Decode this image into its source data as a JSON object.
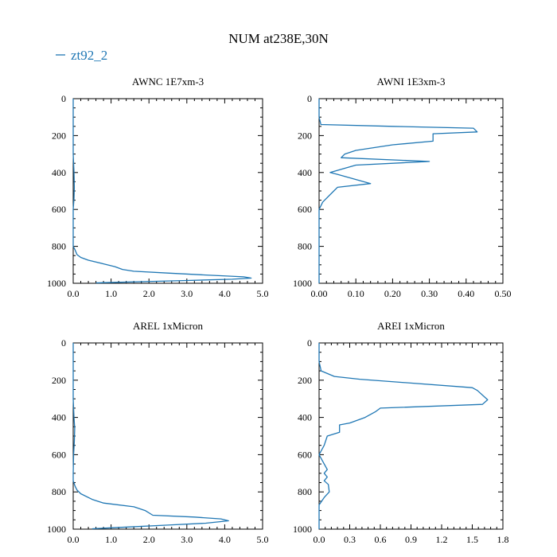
{
  "figure_title": "NUM at238E,30N",
  "legend": {
    "label": "zt92_2",
    "color": "#1f77b4"
  },
  "colors": {
    "series": "#1f77b4",
    "axis": "#000000"
  },
  "chart_data": [
    {
      "type": "line",
      "title": "AWNC  1E7xm-3",
      "xlabel": "",
      "ylabel": "",
      "xlim": [
        0,
        5
      ],
      "ylim": [
        0,
        1000
      ],
      "y_inverted": true,
      "x_ticks": [
        0,
        1,
        2,
        3,
        4,
        5
      ],
      "x_tick_labels": [
        "0.0",
        "1.0",
        "2.0",
        "3.0",
        "4.0",
        "5.0"
      ],
      "y_ticks": [
        0,
        200,
        400,
        600,
        800,
        1000
      ],
      "y_tick_labels": [
        "0",
        "200",
        "400",
        "600",
        "800",
        "1000"
      ],
      "series": [
        {
          "name": "zt92_2",
          "x": [
            0,
            0,
            0.02,
            0.03,
            0.02,
            0,
            0,
            0.05,
            0.1,
            0.2,
            0.4,
            0.8,
            1.1,
            1.3,
            1.6,
            2.5,
            3.5,
            4.5,
            4.7,
            4.2,
            3.0,
            1.7,
            0.6
          ],
          "y": [
            0,
            300,
            400,
            480,
            540,
            600,
            800,
            820,
            845,
            860,
            875,
            895,
            910,
            925,
            935,
            945,
            955,
            965,
            972,
            978,
            985,
            992,
            998
          ]
        }
      ]
    },
    {
      "type": "line",
      "title": "AWNI  1E3xm-3",
      "xlabel": "",
      "ylabel": "",
      "xlim": [
        0,
        0.5
      ],
      "ylim": [
        0,
        1000
      ],
      "y_inverted": true,
      "x_ticks": [
        0,
        0.1,
        0.2,
        0.3,
        0.4,
        0.5
      ],
      "x_tick_labels": [
        "0.00",
        "0.10",
        "0.20",
        "0.30",
        "0.40",
        "0.50"
      ],
      "y_ticks": [
        0,
        200,
        400,
        600,
        800,
        1000
      ],
      "y_tick_labels": [
        "0",
        "200",
        "400",
        "600",
        "800",
        "1000"
      ],
      "series": [
        {
          "name": "zt92_2",
          "x": [
            0,
            0,
            0.005,
            0.2,
            0.42,
            0.43,
            0.31,
            0.31,
            0.2,
            0.1,
            0.07,
            0.06,
            0.3,
            0.1,
            0.03,
            0.05,
            0.14,
            0.05,
            0.04,
            0.01,
            0,
            0,
            0
          ],
          "y": [
            0,
            100,
            140,
            150,
            160,
            180,
            190,
            230,
            250,
            280,
            300,
            320,
            340,
            360,
            400,
            410,
            460,
            480,
            500,
            560,
            600,
            800,
            1000
          ]
        }
      ]
    },
    {
      "type": "line",
      "title": "AREL  1xMicron",
      "xlabel": "",
      "ylabel": "",
      "xlim": [
        0,
        5
      ],
      "ylim": [
        0,
        1000
      ],
      "y_inverted": true,
      "x_ticks": [
        0,
        1,
        2,
        3,
        4,
        5
      ],
      "x_tick_labels": [
        "0.0",
        "1.0",
        "2.0",
        "3.0",
        "4.0",
        "5.0"
      ],
      "y_ticks": [
        0,
        200,
        400,
        600,
        800,
        1000
      ],
      "y_tick_labels": [
        "0",
        "200",
        "400",
        "600",
        "800",
        "1000"
      ],
      "series": [
        {
          "name": "zt92_2",
          "x": [
            0,
            0,
            0.02,
            0.04,
            0.03,
            0.01,
            0,
            0,
            0.05,
            0.1,
            0.2,
            0.5,
            0.8,
            1.6,
            1.9,
            2.1,
            3.2,
            3.9,
            4.1,
            3.5,
            2.5,
            1.5,
            0.5
          ],
          "y": [
            0,
            300,
            400,
            460,
            530,
            600,
            700,
            740,
            770,
            790,
            810,
            840,
            860,
            880,
            900,
            925,
            935,
            945,
            955,
            968,
            978,
            988,
            998
          ]
        }
      ]
    },
    {
      "type": "line",
      "title": "AREI  1xMicron",
      "xlabel": "",
      "ylabel": "",
      "xlim": [
        0,
        1.8
      ],
      "ylim": [
        0,
        1000
      ],
      "y_inverted": true,
      "x_ticks": [
        0,
        0.3,
        0.6,
        0.9,
        1.2,
        1.5,
        1.8
      ],
      "x_tick_labels": [
        "0.0",
        "0.3",
        "0.6",
        "0.9",
        "1.2",
        "1.5",
        "1.8"
      ],
      "y_ticks": [
        0,
        200,
        400,
        600,
        800,
        1000
      ],
      "y_tick_labels": [
        "0",
        "200",
        "400",
        "600",
        "800",
        "1000"
      ],
      "series": [
        {
          "name": "zt92_2",
          "x": [
            0,
            0,
            0.02,
            0.15,
            0.4,
            1.5,
            1.55,
            1.65,
            1.6,
            0.6,
            0.55,
            0.45,
            0.3,
            0.2,
            0.2,
            0.2,
            0.08,
            0.05,
            0,
            0.05,
            0.08,
            0.05,
            0.08,
            0.05,
            0.09,
            0.1,
            0.05,
            0,
            0
          ],
          "y": [
            0,
            100,
            150,
            180,
            195,
            240,
            255,
            305,
            330,
            350,
            370,
            400,
            430,
            440,
            460,
            480,
            500,
            550,
            600,
            650,
            680,
            700,
            720,
            740,
            760,
            800,
            830,
            870,
            1000
          ]
        }
      ]
    }
  ]
}
